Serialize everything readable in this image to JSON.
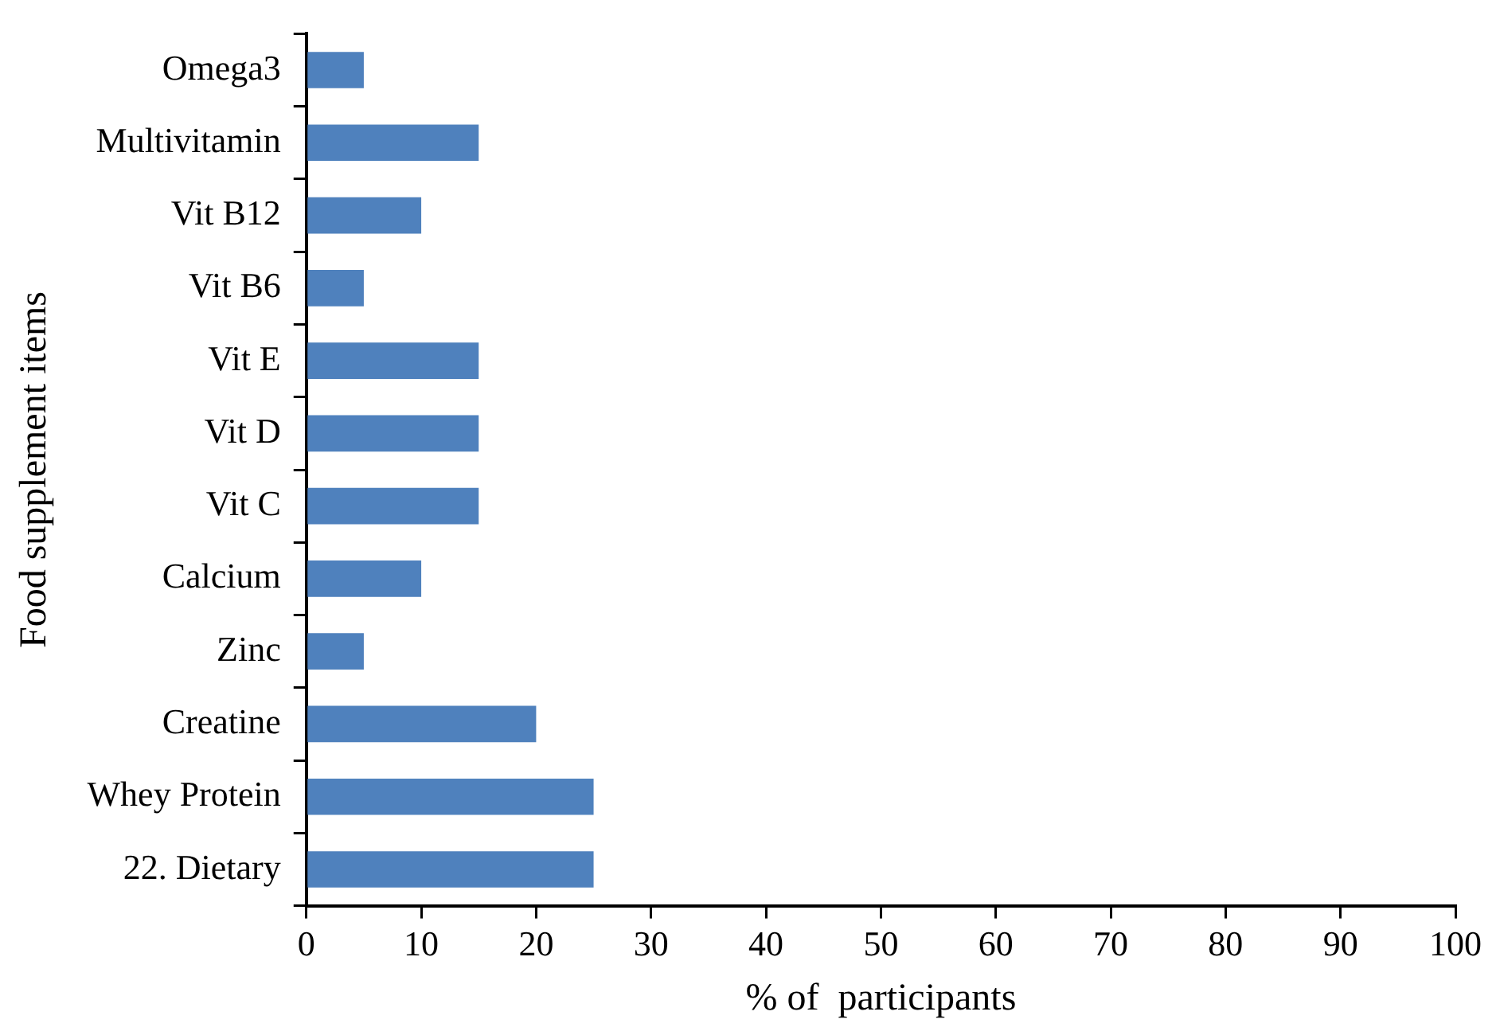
{
  "chart_data": {
    "type": "bar",
    "orientation": "horizontal",
    "xlabel": "% of  participants",
    "ylabel": "Food supplement items",
    "categories": [
      "Omega3",
      "Multivitamin",
      "Vit B12",
      "Vit B6",
      "Vit E",
      "Vit D",
      "Vit C",
      "Calcium",
      "Zinc",
      "Creatine",
      "Whey Protein",
      "22. Dietary"
    ],
    "values": [
      5,
      15,
      10,
      5,
      15,
      15,
      15,
      10,
      5,
      20,
      25,
      25
    ],
    "color": "#4f81bd",
    "xlim": [
      0,
      100
    ],
    "xticks": [
      0,
      10,
      20,
      30,
      40,
      50,
      60,
      70,
      80,
      90,
      100
    ],
    "grid": false,
    "legend": false
  }
}
